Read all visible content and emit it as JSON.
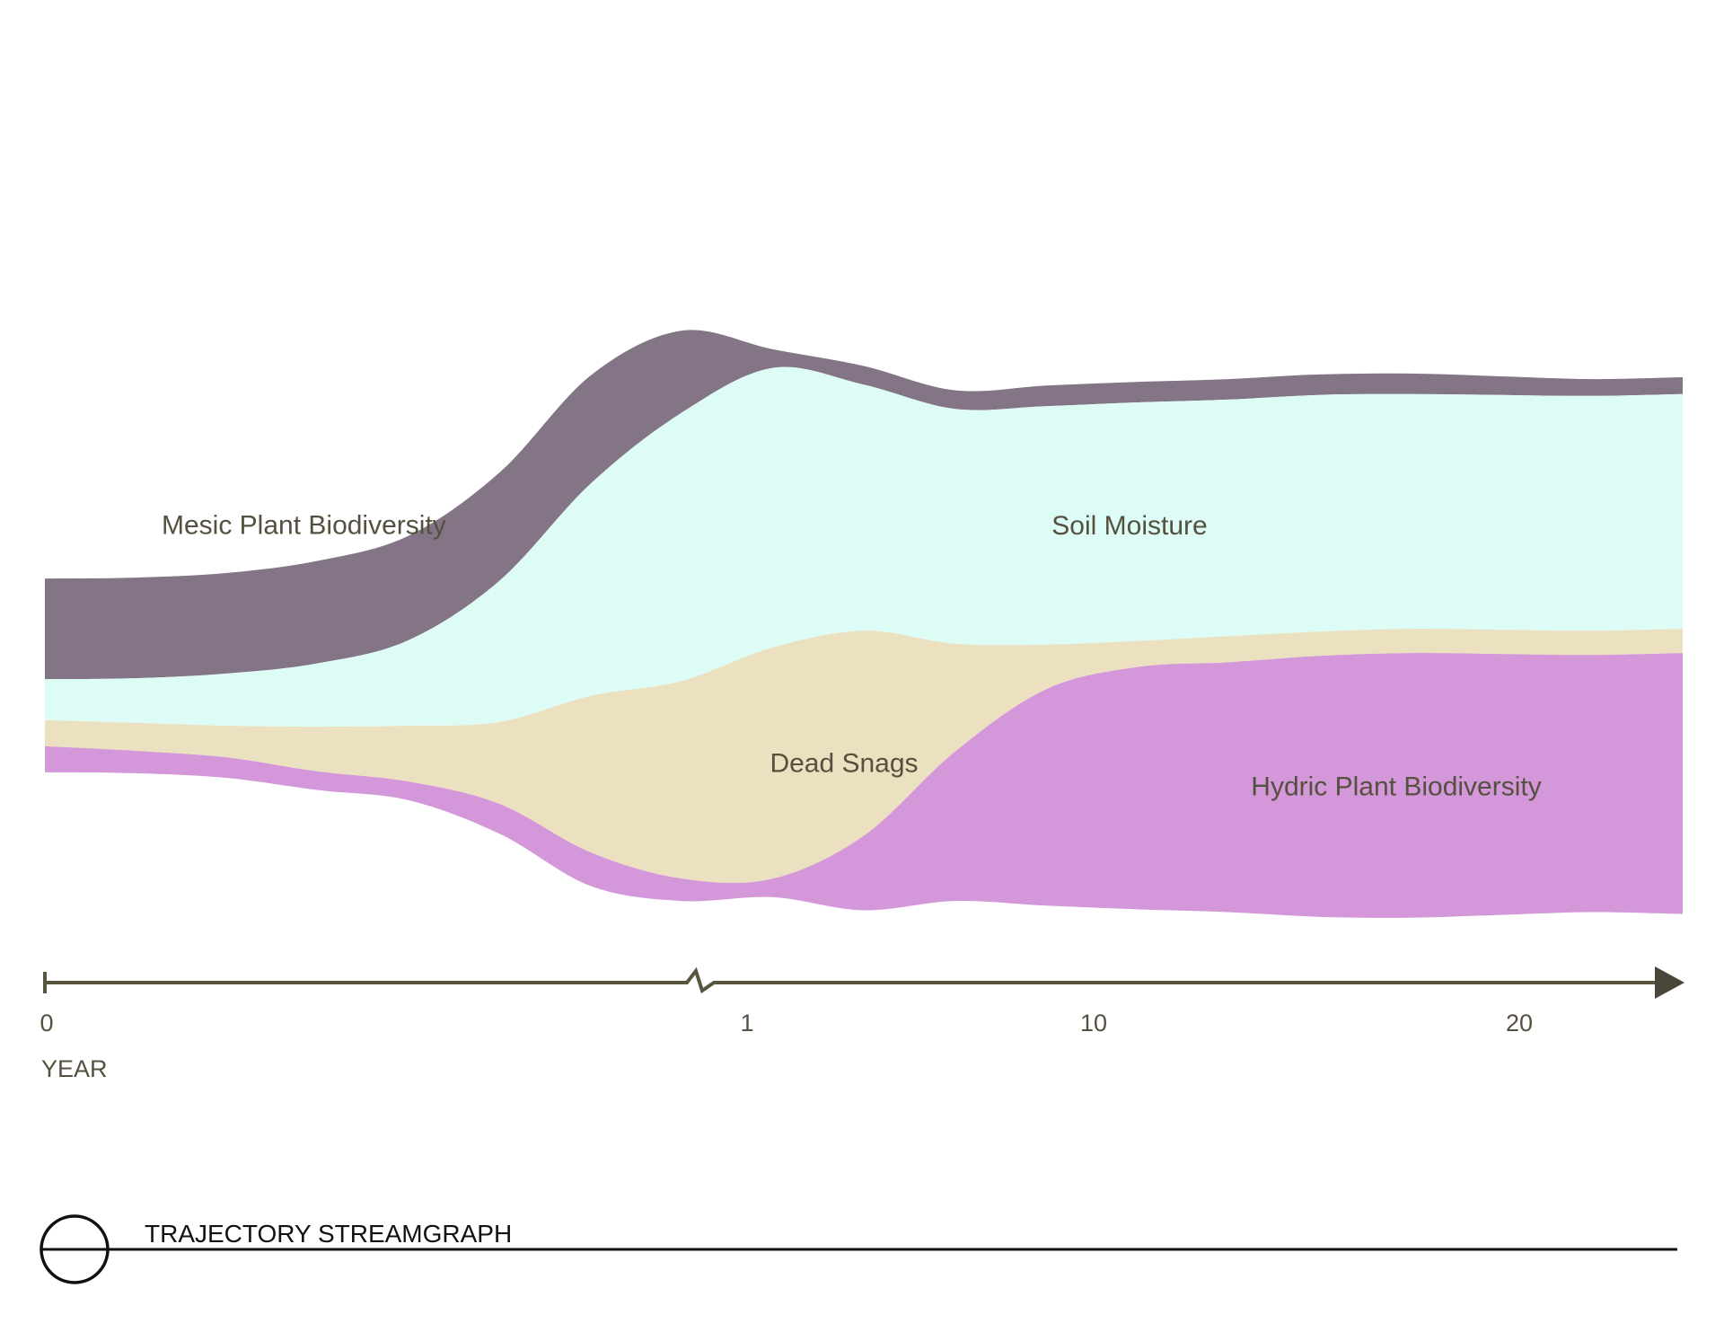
{
  "chart_data": {
    "type": "area",
    "subtype": "streamgraph",
    "title": "TRAJECTORY STREAMGRAPH",
    "xlabel": "YEAR",
    "ylabel": "",
    "x_ticks": [
      "0",
      "1",
      "10",
      "20"
    ],
    "x_axis_break_between": [
      "0",
      "1"
    ],
    "axis_color": "#58553f",
    "grid": false,
    "legend": "inline labels",
    "x_samples": [
      "0",
      "",
      "",
      "",
      "",
      "",
      "",
      "",
      "1",
      "",
      "",
      "",
      "",
      "",
      "",
      "",
      "",
      "20",
      ""
    ],
    "series": [
      {
        "name": "Mesic Plant Biodiversity",
        "color": "#837486",
        "values": [
          0.27,
          0.27,
          0.27,
          0.275,
          0.28,
          0.29,
          0.29,
          0.22,
          0.05,
          0.05,
          0.05,
          0.055,
          0.055,
          0.055,
          0.055,
          0.055,
          0.05,
          0.045,
          0.045
        ]
      },
      {
        "name": "Soil Moisture",
        "color": "#ddfcf5",
        "values": [
          0.11,
          0.12,
          0.14,
          0.17,
          0.23,
          0.38,
          0.57,
          0.72,
          0.75,
          0.66,
          0.63,
          0.64,
          0.64,
          0.635,
          0.635,
          0.63,
          0.63,
          0.63,
          0.63
        ]
      },
      {
        "name": "Dead Snags",
        "color": "#ebe0bf",
        "values": [
          0.07,
          0.075,
          0.085,
          0.12,
          0.15,
          0.22,
          0.42,
          0.53,
          0.62,
          0.55,
          0.29,
          0.12,
          0.07,
          0.07,
          0.065,
          0.065,
          0.065,
          0.065,
          0.065
        ]
      },
      {
        "name": "Hydric Plant Biodiversity",
        "color": "#d397da",
        "values": [
          0.07,
          0.06,
          0.055,
          0.05,
          0.05,
          0.08,
          0.09,
          0.06,
          0.05,
          0.2,
          0.4,
          0.58,
          0.65,
          0.67,
          0.7,
          0.71,
          0.7,
          0.69,
          0.7
        ]
      }
    ]
  },
  "footer": {
    "title": "TRAJECTORY STREAMGRAPH"
  }
}
